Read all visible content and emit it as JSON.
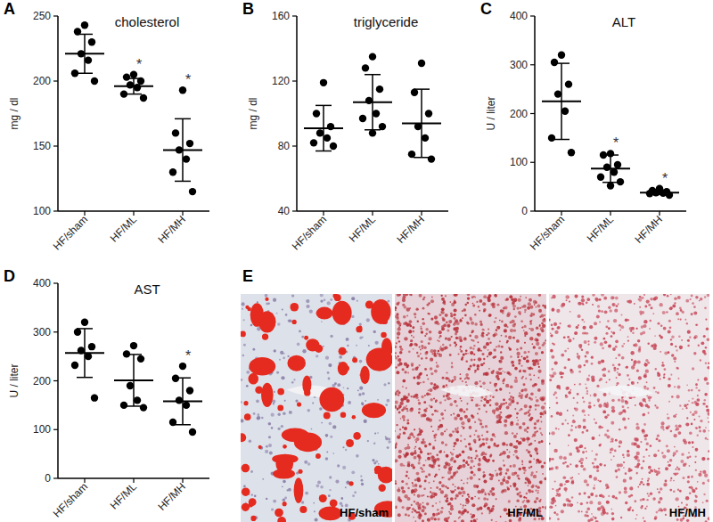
{
  "chart_data": [
    {
      "type": "dot",
      "panel": "A",
      "title": "cholesterol",
      "y_label": "mg / dl",
      "categories": [
        "HF/sham",
        "HF/ML",
        "HF/MH"
      ],
      "points": [
        [
          243,
          238,
          230,
          221,
          216,
          206,
          200
        ],
        [
          205,
          203,
          200,
          197,
          195,
          190,
          187
        ],
        [
          193,
          160,
          152,
          147,
          140,
          130,
          115
        ]
      ],
      "mean": [
        221,
        196,
        147
      ],
      "sd": [
        15,
        6,
        24
      ],
      "significance": [
        null,
        "*",
        "*"
      ],
      "ylim": [
        100,
        250
      ],
      "yticks": [
        100,
        150,
        200,
        250
      ],
      "color": "#000000",
      "grid": false
    },
    {
      "type": "dot",
      "panel": "B",
      "title": "triglyceride",
      "y_label": "mg / dl",
      "categories": [
        "HF/sham",
        "HF/ML",
        "HF/MH"
      ],
      "points": [
        [
          119,
          100,
          92,
          88,
          85,
          82,
          80
        ],
        [
          135,
          128,
          115,
          108,
          100,
          97,
          92,
          88
        ],
        [
          131,
          113,
          100,
          92,
          85,
          75,
          72
        ]
      ],
      "mean": [
        91,
        107,
        94
      ],
      "sd": [
        14,
        17,
        21
      ],
      "ylim": [
        40,
        160
      ],
      "yticks": [
        40,
        80,
        120,
        160
      ],
      "color": "#000000",
      "grid": false
    },
    {
      "type": "dot",
      "panel": "C",
      "title": "ALT",
      "y_label": "U / liter",
      "categories": [
        "HF/sham",
        "HF/ML",
        "HF/MH"
      ],
      "points": [
        [
          320,
          305,
          260,
          240,
          205,
          150,
          120
        ],
        [
          118,
          115,
          95,
          90,
          80,
          70,
          60,
          52
        ],
        [
          46,
          42,
          40,
          38,
          37,
          36,
          33
        ]
      ],
      "mean": [
        225,
        87,
        38
      ],
      "sd": [
        78,
        28,
        4
      ],
      "significance": [
        null,
        "*",
        "*"
      ],
      "ylim": [
        0,
        400
      ],
      "yticks": [
        0,
        100,
        200,
        300,
        400
      ],
      "color": "#000000",
      "grid": false
    },
    {
      "type": "dot",
      "panel": "D",
      "title": "AST",
      "y_label": "U / liter",
      "categories": [
        "HF/sham",
        "HF/ML",
        "HF/MH"
      ],
      "points": [
        [
          320,
          300,
          270,
          262,
          250,
          232,
          165
        ],
        [
          272,
          255,
          245,
          190,
          160,
          150,
          145
        ],
        [
          230,
          205,
          180,
          160,
          150,
          115,
          95
        ]
      ],
      "mean": [
        257,
        201,
        158
      ],
      "sd": [
        50,
        53,
        48
      ],
      "significance": [
        null,
        null,
        "*"
      ],
      "ylim": [
        0,
        400
      ],
      "yticks": [
        0,
        100,
        200,
        300,
        400
      ],
      "color": "#000000",
      "grid": false
    }
  ],
  "histology": {
    "panel": "E",
    "images": [
      "HF/sham",
      "HF/ML",
      "HF/MH"
    ]
  }
}
